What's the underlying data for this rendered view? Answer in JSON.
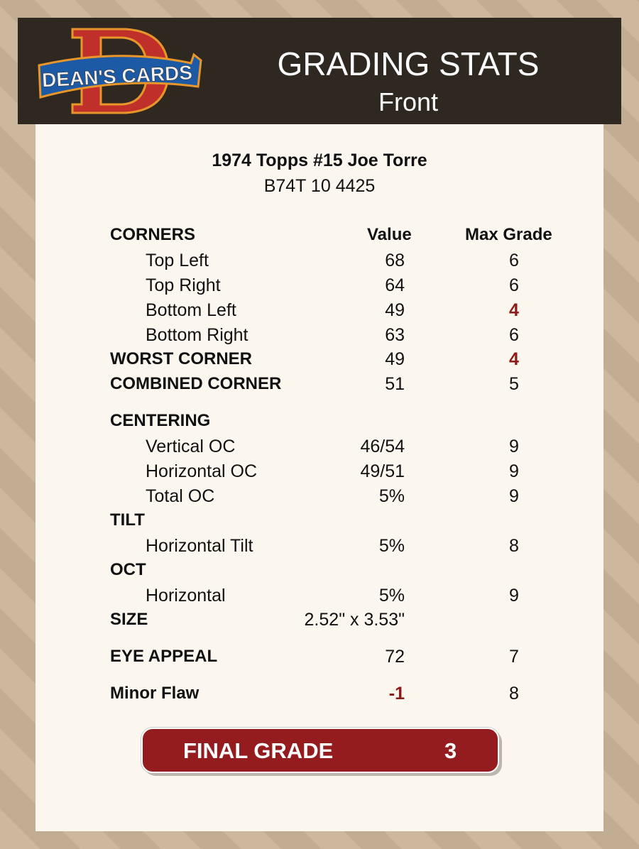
{
  "header": {
    "logo_text": "DEAN'S CARDS",
    "title": "GRADING STATS",
    "subtitle": "Front"
  },
  "card": {
    "name": "1974 Topps #15 Joe Torre",
    "code": "B74T 10 4425"
  },
  "columns": {
    "label": "CORNERS",
    "value": "Value",
    "max": "Max Grade"
  },
  "rows": [
    {
      "label": "Top Left",
      "value": "68",
      "max": "6",
      "section": false
    },
    {
      "label": "Top Right",
      "value": "64",
      "max": "6",
      "section": false
    },
    {
      "label": "Bottom Left",
      "value": "49",
      "max": "4",
      "section": false,
      "max_red": true
    },
    {
      "label": "Bottom Right",
      "value": "63",
      "max": "6",
      "section": false
    },
    {
      "label": "WORST CORNER",
      "value": "49",
      "max": "4",
      "section": true,
      "max_red": true
    },
    {
      "label": "COMBINED CORNER",
      "value": "51",
      "max": "5",
      "section": true
    },
    {
      "label": "CENTERING",
      "value": "",
      "max": "",
      "section": true
    },
    {
      "label": "Vertical OC",
      "value": "46/54",
      "max": "9",
      "section": false
    },
    {
      "label": "Horizontal OC",
      "value": "49/51",
      "max": "9",
      "section": false
    },
    {
      "label": "Total OC",
      "value": "5%",
      "max": "9",
      "section": false
    },
    {
      "label": "TILT",
      "value": "",
      "max": "",
      "section": true
    },
    {
      "label": "Horizontal Tilt",
      "value": "5%",
      "max": "8",
      "section": false
    },
    {
      "label": "OCT",
      "value": "",
      "max": "",
      "section": true
    },
    {
      "label": "Horizontal",
      "value": "5%",
      "max": "9",
      "section": false
    },
    {
      "label": "SIZE",
      "value": "2.52\" x 3.53\"",
      "max": "",
      "section": true
    },
    {
      "label": "EYE APPEAL",
      "value": "72",
      "max": "7",
      "section": true
    },
    {
      "label": "Minor Flaw",
      "value": "-1",
      "max": "8",
      "section": true,
      "value_red": true
    }
  ],
  "final": {
    "label": "FINAL GRADE",
    "value": "3"
  },
  "colors": {
    "header_bg": "#2f2820",
    "accent_red": "#941b1e",
    "panel_bg": "#fcf7ee"
  }
}
